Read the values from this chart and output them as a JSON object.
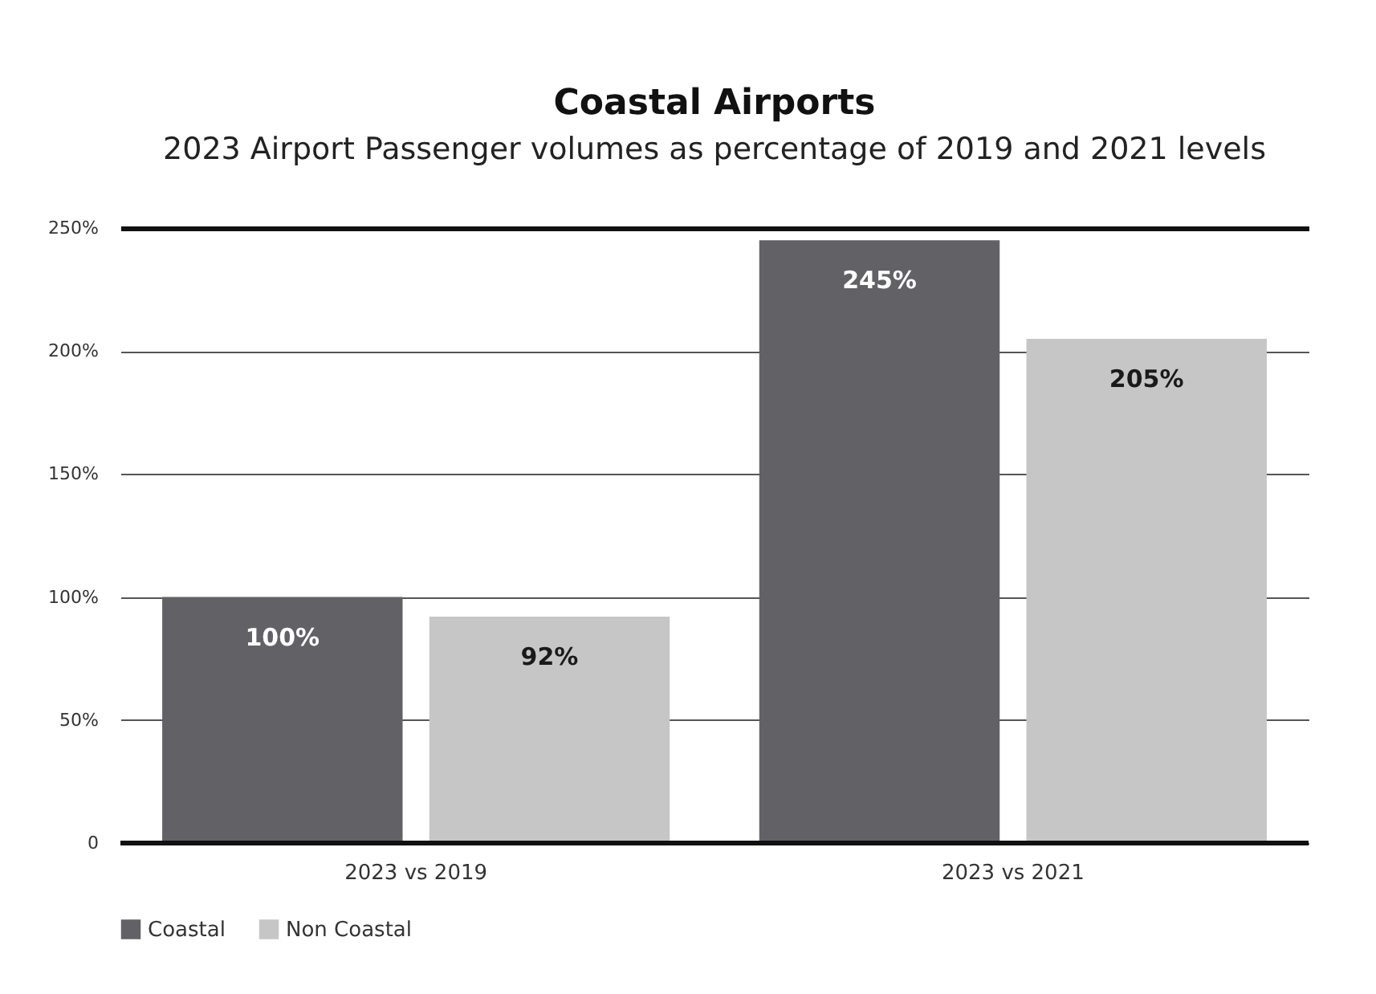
{
  "chart_data": {
    "type": "bar",
    "title": "Coastal Airports",
    "subtitle": "2023 Airport Passenger volumes as percentage of 2019 and 2021 levels",
    "categories": [
      "2023 vs 2019",
      "2023 vs 2021"
    ],
    "series": [
      {
        "name": "Coastal",
        "color": "#626166",
        "values": [
          100,
          245
        ],
        "value_labels": [
          "100%",
          "245%"
        ]
      },
      {
        "name": "Non Coastal",
        "color": "#c6c6c6",
        "values": [
          92,
          205
        ],
        "value_labels": [
          "92%",
          "205%"
        ]
      }
    ],
    "ylim": [
      0,
      250
    ],
    "yticks": [
      0,
      {
        "value": 50,
        "label": "50%"
      },
      {
        "value": 100,
        "label": "100%"
      },
      {
        "value": 150,
        "label": "150%"
      },
      {
        "value": 200,
        "label": "200%"
      },
      {
        "value": 250,
        "label": "250%"
      }
    ],
    "grid": "y",
    "legend": "bottom"
  }
}
